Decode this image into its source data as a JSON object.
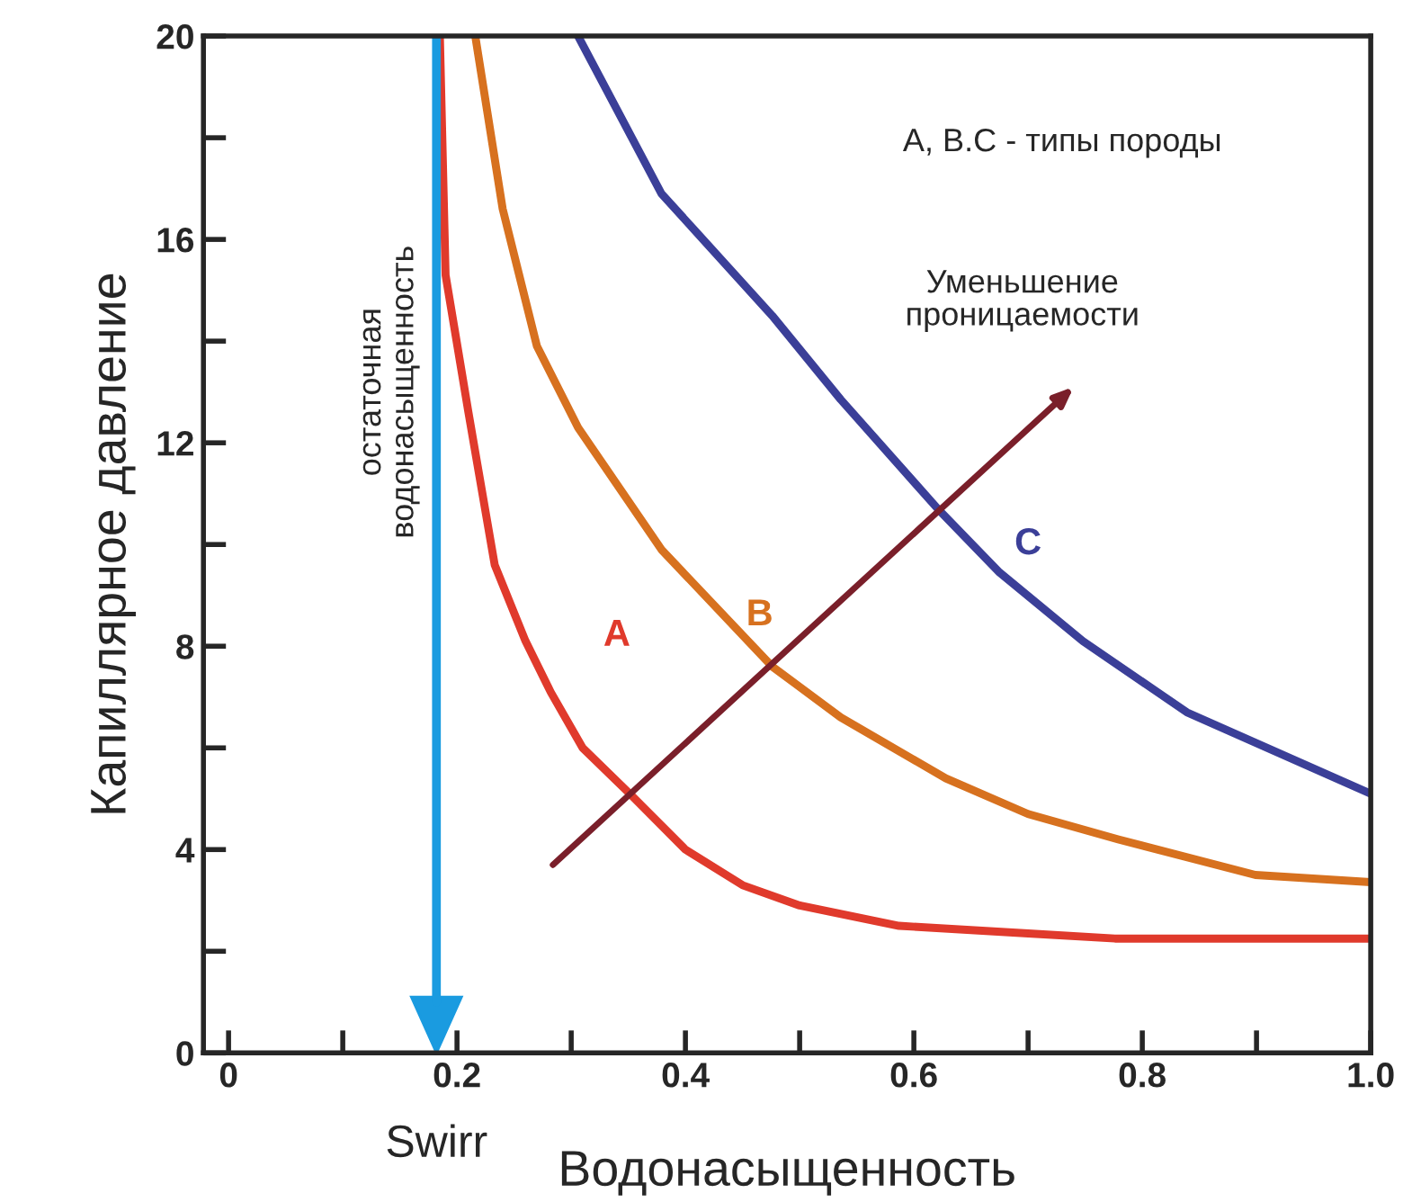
{
  "chart_data": {
    "type": "line",
    "xlabel": "Водонасыщенность",
    "ylabel": "Капиллярное давление",
    "xlim": [
      -0.022,
      1.0
    ],
    "ylim": [
      0,
      20
    ],
    "xticks": [
      0,
      {
        "value": 0.1,
        "label": null
      },
      0.2,
      {
        "value": 0.3,
        "label": null
      },
      0.4,
      {
        "value": 0.5,
        "label": null
      },
      0.6,
      {
        "value": 0.7,
        "label": null
      },
      0.8,
      {
        "value": 0.9,
        "label": null
      },
      {
        "value": 1.0,
        "label": "1.0"
      }
    ],
    "yticks": [
      0,
      {
        "value": 2,
        "label": null
      },
      4,
      {
        "value": 6,
        "label": null
      },
      8,
      {
        "value": 10,
        "label": null
      },
      12,
      {
        "value": 14,
        "label": null
      },
      16,
      {
        "value": 18,
        "label": null
      },
      20
    ],
    "grid": false,
    "series": [
      {
        "name": "A",
        "color": "#e03a2c",
        "x": [
          0.185,
          0.19,
          0.21,
          0.233,
          0.26,
          0.282,
          0.31,
          0.353,
          0.4,
          0.45,
          0.5,
          0.587,
          0.7,
          0.776,
          1.0
        ],
        "values": [
          20,
          15.3,
          12.6,
          9.6,
          8.1,
          7.1,
          6.0,
          5.06,
          4.0,
          3.3,
          2.9,
          2.5,
          2.35,
          2.25,
          2.25
        ]
      },
      {
        "name": "B",
        "color": "#d7711f",
        "x": [
          0.216,
          0.24,
          0.27,
          0.306,
          0.379,
          0.476,
          0.536,
          0.628,
          0.7,
          0.779,
          0.899,
          1.0
        ],
        "values": [
          20,
          16.6,
          13.9,
          12.3,
          9.9,
          7.6,
          6.6,
          5.4,
          4.7,
          4.2,
          3.5,
          3.36
        ]
      },
      {
        "name": "C",
        "color": "#3b3f98",
        "x": [
          0.306,
          0.379,
          0.476,
          0.536,
          0.621,
          0.675,
          0.748,
          0.839,
          1.0
        ],
        "values": [
          20,
          16.9,
          14.5,
          12.85,
          10.7,
          9.45,
          8.1,
          6.7,
          5.1
        ]
      }
    ],
    "ref_lines": [
      {
        "axis": "x",
        "value": 0.182,
        "label": "Swirr",
        "color": "#1a9be0"
      }
    ],
    "annotations": [
      "остаточная\nводонасыщенность",
      "A, B.C - типы породы",
      "Уменьшение\nпроницаемости"
    ]
  }
}
